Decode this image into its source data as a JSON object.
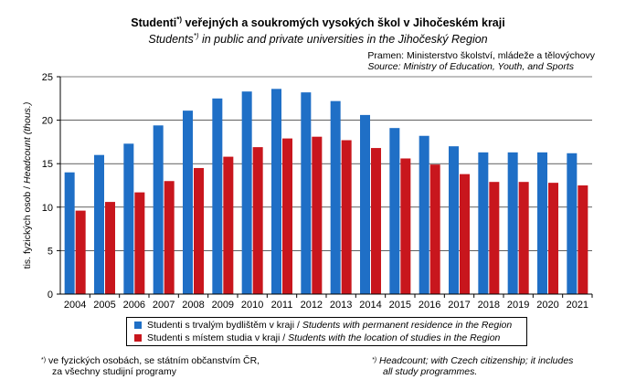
{
  "title": {
    "cz_main": "Studenti",
    "cz_sup": "*)",
    "cz_rest": " veřejných a soukromých vysokých škol v Jihočeském kraji",
    "en_main": "Students",
    "en_sup": "*)",
    "en_rest": " in public and private universities in the Jihočeský Region"
  },
  "source": {
    "cz": "Pramen: Ministerstvo školství, mládeže a tělovýchovy",
    "en": "Source: Ministry of Education, Youth, and Sports"
  },
  "colors": {
    "permanent": "#1f6fc6",
    "study": "#c8161d",
    "axis": "#000000"
  },
  "chart_data": {
    "type": "bar",
    "categories": [
      "2004",
      "2005",
      "2006",
      "2007",
      "2008",
      "2009",
      "2010",
      "2011",
      "2012",
      "2013",
      "2014",
      "2015",
      "2016",
      "2017",
      "2018",
      "2019",
      "2020",
      "2021"
    ],
    "series": [
      {
        "name": "Studenti s trvalým bydlištěm v kraji / Students with permanent residence in the Region",
        "values": [
          14.0,
          16.0,
          17.3,
          19.4,
          21.1,
          22.5,
          23.3,
          23.6,
          23.2,
          22.2,
          20.6,
          19.1,
          18.2,
          17.0,
          16.3,
          16.3,
          16.3,
          16.2
        ]
      },
      {
        "name": "Studenti s místem studia v kraji / Students with the location of studies in the Region",
        "values": [
          9.6,
          10.6,
          11.7,
          13.0,
          14.5,
          15.8,
          16.9,
          17.9,
          18.1,
          17.7,
          16.8,
          15.6,
          14.9,
          13.8,
          12.9,
          12.9,
          12.8,
          12.5
        ]
      }
    ],
    "ylim": [
      0,
      25
    ],
    "yticks": [
      0,
      5,
      10,
      15,
      20,
      25
    ],
    "ylabel_cz": "tis. fyzických osob / ",
    "ylabel_en": "Headcount (thous.)",
    "xlabel": "",
    "grid": true
  },
  "legend": {
    "item1_cz": "Studenti s trvalým bydlištěm v kraji / ",
    "item1_en": "Students with permanent residence in the Region",
    "item2_cz": "Studenti s místem studia v kraji / ",
    "item2_en": "Students with the location of studies in the Region"
  },
  "footnotes": {
    "mark": "*)",
    "cz_line1": " ve fyzických osobách, se státním občanstvím ČR,",
    "cz_line2": "za všechny studijní programy",
    "en_line1": " Headcount; with Czech citizenship; it includes",
    "en_line2": "all study programmes."
  }
}
